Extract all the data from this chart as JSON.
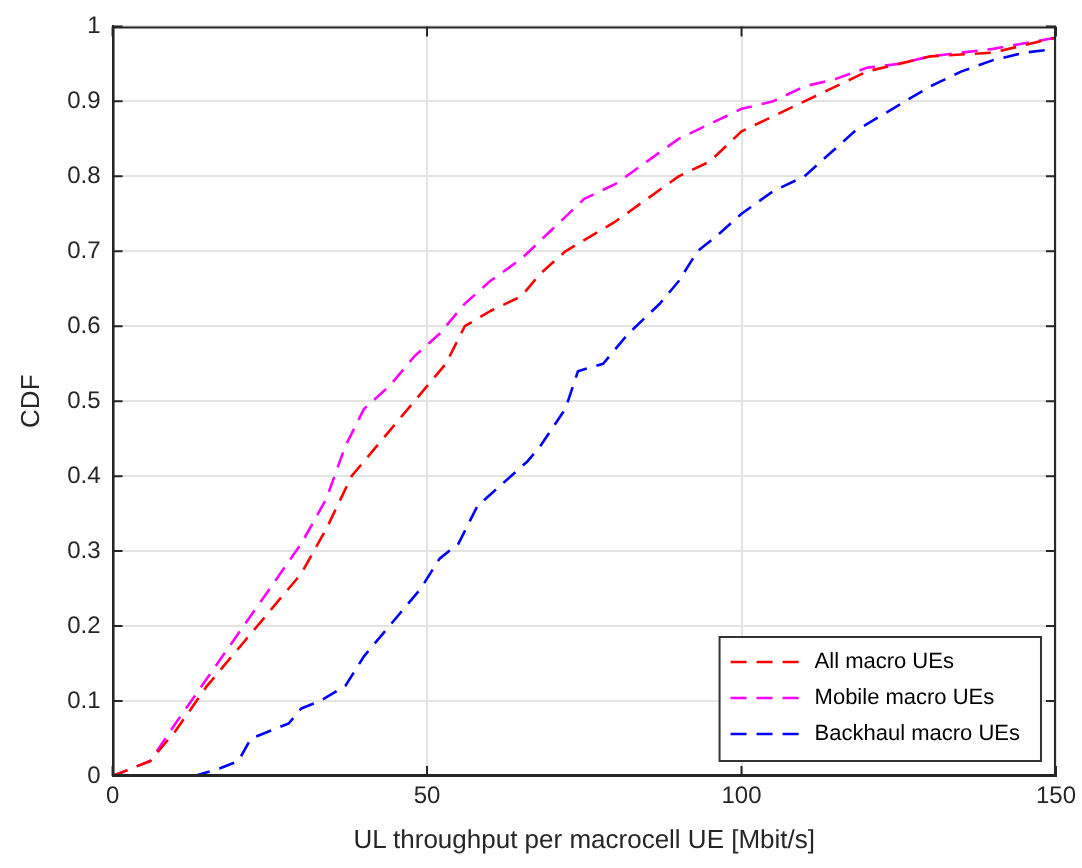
{
  "chart_data": {
    "type": "line",
    "xlabel": "UL throughput per macrocell UE [Mbit/s]",
    "ylabel": "CDF",
    "xlim": [
      0,
      150
    ],
    "xticks": [
      0,
      50,
      100,
      150
    ],
    "ylim": [
      0,
      1
    ],
    "yticks": [
      0,
      0.1,
      0.2,
      0.3,
      0.4,
      0.5,
      0.6,
      0.7,
      0.8,
      0.9,
      1
    ],
    "grid": true,
    "legend": "bottom right",
    "line_style": "dashed",
    "marker": "none",
    "series": [
      {
        "name": "All macro UEs",
        "color": "#ff0000",
        "x": [
          0,
          3,
          6,
          10,
          15,
          20,
          25,
          30,
          34,
          38,
          42,
          46,
          50,
          53,
          56,
          60,
          65,
          68,
          72,
          76,
          80,
          85,
          90,
          95,
          100,
          105,
          110,
          115,
          120,
          125,
          130,
          140,
          150
        ],
        "values": [
          0,
          0.01,
          0.02,
          0.06,
          0.12,
          0.17,
          0.22,
          0.27,
          0.33,
          0.4,
          0.44,
          0.48,
          0.52,
          0.55,
          0.6,
          0.62,
          0.64,
          0.67,
          0.7,
          0.72,
          0.74,
          0.77,
          0.8,
          0.82,
          0.86,
          0.88,
          0.9,
          0.92,
          0.94,
          0.95,
          0.96,
          0.965,
          0.985
        ]
      },
      {
        "name": "Mobile macro UEs",
        "color": "#ff00ff",
        "x": [
          0,
          3,
          6,
          10,
          15,
          20,
          25,
          30,
          34,
          37,
          40,
          44,
          48,
          52,
          56,
          60,
          65,
          70,
          75,
          80,
          85,
          90,
          95,
          100,
          105,
          110,
          115,
          120,
          125,
          130,
          140,
          150
        ],
        "values": [
          0,
          0.01,
          0.02,
          0.07,
          0.13,
          0.19,
          0.25,
          0.31,
          0.37,
          0.44,
          0.49,
          0.52,
          0.56,
          0.59,
          0.63,
          0.66,
          0.69,
          0.73,
          0.77,
          0.79,
          0.82,
          0.85,
          0.87,
          0.89,
          0.9,
          0.92,
          0.93,
          0.945,
          0.95,
          0.96,
          0.97,
          0.985
        ]
      },
      {
        "name": "Backhaul macro UEs",
        "color": "#0000ff",
        "x": [
          13,
          17,
          20,
          22,
          25,
          28,
          30,
          33,
          37,
          40,
          43,
          46,
          49,
          52,
          55,
          58,
          62,
          66,
          68,
          72,
          74,
          78,
          82,
          87,
          90,
          93,
          96,
          100,
          105,
          110,
          114,
          118,
          122,
          126,
          130,
          135,
          140,
          145,
          150
        ],
        "values": [
          0,
          0.01,
          0.02,
          0.05,
          0.06,
          0.07,
          0.09,
          0.1,
          0.12,
          0.16,
          0.19,
          0.22,
          0.25,
          0.29,
          0.31,
          0.36,
          0.39,
          0.42,
          0.44,
          0.49,
          0.54,
          0.55,
          0.59,
          0.63,
          0.66,
          0.7,
          0.72,
          0.75,
          0.78,
          0.8,
          0.83,
          0.86,
          0.88,
          0.9,
          0.92,
          0.94,
          0.955,
          0.965,
          0.97
        ]
      }
    ]
  }
}
